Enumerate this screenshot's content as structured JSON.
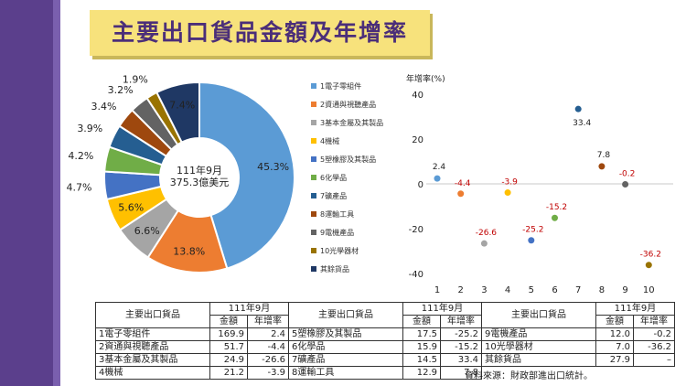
{
  "title": "主要出口貨品金額及年增率",
  "chart_data": [
    {
      "type": "pie",
      "center_label": [
        "111年9月",
        "375.3億美元"
      ],
      "slices": [
        {
          "label": "1電子零組件",
          "value": 45.3,
          "pct": "45.3%",
          "color": "#5b9bd5"
        },
        {
          "label": "2資通與視聽產品",
          "value": 13.8,
          "pct": "13.8%",
          "color": "#ed7d31"
        },
        {
          "label": "3基本金屬及其製品",
          "value": 6.6,
          "pct": "6.6%",
          "color": "#a5a5a5"
        },
        {
          "label": "4機械",
          "value": 5.6,
          "pct": "5.6%",
          "color": "#ffc000"
        },
        {
          "label": "5塑橡膠及其製品",
          "value": 4.7,
          "pct": "4.7%",
          "color": "#4472c4"
        },
        {
          "label": "6化學品",
          "value": 4.2,
          "pct": "4.2%",
          "color": "#70ad47"
        },
        {
          "label": "7礦產品",
          "value": 3.9,
          "pct": "3.9%",
          "color": "#255e91"
        },
        {
          "label": "8運輸工具",
          "value": 3.4,
          "pct": "3.4%",
          "color": "#9e480e"
        },
        {
          "label": "9電機產品",
          "value": 3.2,
          "pct": "3.2%",
          "color": "#636363"
        },
        {
          "label": "10光學器材",
          "value": 1.9,
          "pct": "1.9%",
          "color": "#997300"
        },
        {
          "label": "其餘貨品",
          "value": 7.4,
          "pct": "7.4%",
          "color": "#1f3864"
        }
      ]
    },
    {
      "type": "scatter",
      "ylabel": "年增率(%)",
      "ylim": [
        -40,
        40
      ],
      "yticks": [
        40,
        20,
        0,
        -20,
        -40
      ],
      "xticks": [
        1,
        2,
        3,
        4,
        5,
        6,
        7,
        8,
        9,
        10
      ],
      "points": [
        {
          "x": 1,
          "y": 2.4,
          "label": "2.4",
          "color": "#5b9bd5"
        },
        {
          "x": 2,
          "y": -4.4,
          "label": "-4.4",
          "color": "#ed7d31"
        },
        {
          "x": 3,
          "y": -26.6,
          "label": "-26.6",
          "color": "#a5a5a5"
        },
        {
          "x": 4,
          "y": -3.9,
          "label": "-3.9",
          "color": "#ffc000"
        },
        {
          "x": 5,
          "y": -25.2,
          "label": "-25.2",
          "color": "#4472c4"
        },
        {
          "x": 6,
          "y": -15.2,
          "label": "-15.2",
          "color": "#70ad47"
        },
        {
          "x": 7,
          "y": 33.4,
          "label": "33.4",
          "color": "#255e91"
        },
        {
          "x": 8,
          "y": 7.8,
          "label": "7.8",
          "color": "#9e480e"
        },
        {
          "x": 9,
          "y": -0.2,
          "label": "-0.2",
          "color": "#636363"
        },
        {
          "x": 10,
          "y": -36.2,
          "label": "-36.2",
          "color": "#997300"
        }
      ]
    }
  ],
  "table": {
    "col_header": "主要出口貨品",
    "period": "111年9月",
    "amount": "金額",
    "growth": "年增率",
    "groups": [
      [
        {
          "name": "1電子零組件",
          "amount": "169.9",
          "growth": "2.4"
        },
        {
          "name": "2資通與視聽產品",
          "amount": "51.7",
          "growth": "-4.4"
        },
        {
          "name": "3基本金屬及其製品",
          "amount": "24.9",
          "growth": "-26.6"
        },
        {
          "name": "4機械",
          "amount": "21.2",
          "growth": "-3.9"
        }
      ],
      [
        {
          "name": "5塑橡膠及其製品",
          "amount": "17.5",
          "growth": "-25.2"
        },
        {
          "name": "6化學品",
          "amount": "15.9",
          "growth": "-15.2"
        },
        {
          "name": "7礦產品",
          "amount": "14.5",
          "growth": "33.4"
        },
        {
          "name": "8運輸工具",
          "amount": "12.9",
          "growth": "7.8"
        }
      ],
      [
        {
          "name": "9電機產品",
          "amount": "12.0",
          "growth": "-0.2"
        },
        {
          "name": "10光學器材",
          "amount": "7.0",
          "growth": "-36.2"
        },
        {
          "name": "其餘貨品",
          "amount": "27.9",
          "growth": "–"
        }
      ]
    ],
    "source": "資料來源：財政部進出口統計。"
  }
}
